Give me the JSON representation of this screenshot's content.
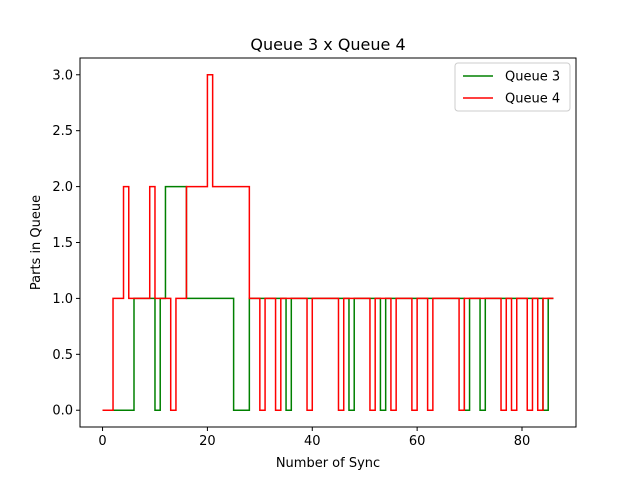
{
  "chart_data": {
    "type": "line",
    "step": "post",
    "title": "Queue 3 x Queue 4",
    "xlabel": "Number of Sync",
    "ylabel": "Parts in Queue",
    "xlim": [
      -4.3,
      90.3
    ],
    "ylim": [
      -0.15,
      3.15
    ],
    "xticks": [
      0,
      20,
      40,
      60,
      80
    ],
    "xtick_labels": [
      "0",
      "20",
      "40",
      "60",
      "80"
    ],
    "yticks": [
      0,
      0.5,
      1.0,
      1.5,
      2.0,
      2.5,
      3.0
    ],
    "ytick_labels": [
      "0.0",
      "0.5",
      "1.0",
      "1.5",
      "2.0",
      "2.5",
      "3.0"
    ],
    "grid": false,
    "legend_position": "top-right",
    "series": [
      {
        "name": "Queue 3",
        "color": "#008000",
        "points": [
          [
            0,
            0
          ],
          [
            6,
            1
          ],
          [
            10,
            0
          ],
          [
            11,
            1
          ],
          [
            12,
            2
          ],
          [
            16,
            1
          ],
          [
            25,
            0
          ],
          [
            28,
            1
          ],
          [
            35,
            0
          ],
          [
            36,
            1
          ],
          [
            47,
            0
          ],
          [
            48,
            1
          ],
          [
            53,
            0
          ],
          [
            54,
            1
          ],
          [
            69,
            0
          ],
          [
            70,
            1
          ],
          [
            72,
            0
          ],
          [
            73,
            1
          ],
          [
            84,
            0
          ],
          [
            85,
            1
          ],
          [
            86,
            1
          ]
        ]
      },
      {
        "name": "Queue 4",
        "color": "#ff0000",
        "points": [
          [
            0,
            0
          ],
          [
            2,
            1
          ],
          [
            4,
            2
          ],
          [
            5,
            1
          ],
          [
            9,
            2
          ],
          [
            10,
            1
          ],
          [
            13,
            0
          ],
          [
            14,
            1
          ],
          [
            16,
            2
          ],
          [
            20,
            3
          ],
          [
            21,
            2
          ],
          [
            28,
            1
          ],
          [
            30,
            0
          ],
          [
            31,
            1
          ],
          [
            33,
            0
          ],
          [
            34,
            1
          ],
          [
            39,
            0
          ],
          [
            40,
            1
          ],
          [
            45,
            0
          ],
          [
            46,
            1
          ],
          [
            51,
            0
          ],
          [
            52,
            1
          ],
          [
            55,
            0
          ],
          [
            56,
            1
          ],
          [
            59,
            0
          ],
          [
            60,
            1
          ],
          [
            62,
            0
          ],
          [
            63,
            1
          ],
          [
            68,
            0
          ],
          [
            69,
            1
          ],
          [
            76,
            0
          ],
          [
            77,
            1
          ],
          [
            78,
            0
          ],
          [
            79,
            1
          ],
          [
            81,
            0
          ],
          [
            82,
            1
          ],
          [
            83,
            0
          ],
          [
            84,
            1
          ],
          [
            86,
            1
          ]
        ]
      }
    ]
  }
}
